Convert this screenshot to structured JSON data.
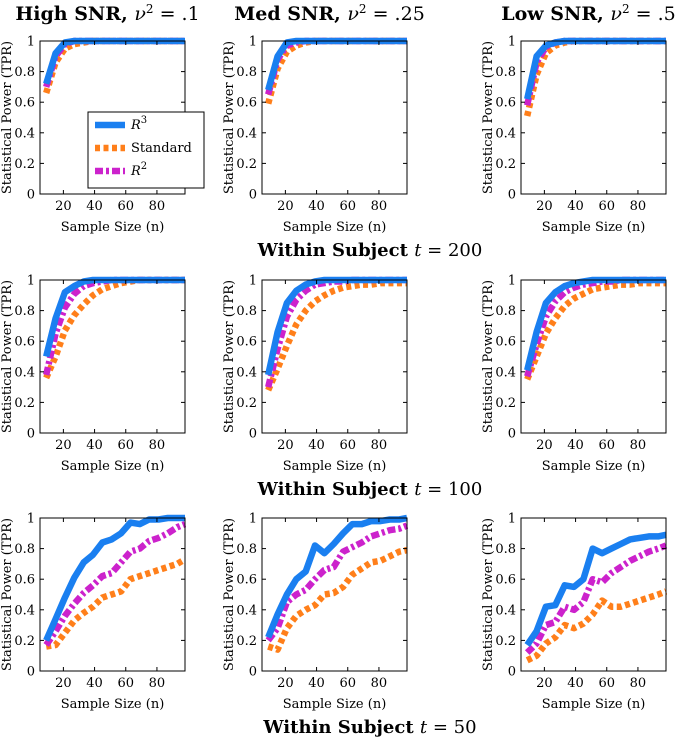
{
  "figure": {
    "col_titles": [
      {
        "prefix": "High SNR, ",
        "var": "ν",
        "sup": "2",
        "suffix": " = .1"
      },
      {
        "prefix": "Med SNR, ",
        "var": "ν",
        "sup": "2",
        "suffix": " = .25"
      },
      {
        "prefix": "Low SNR, ",
        "var": "ν",
        "sup": "2",
        "suffix": " = .5"
      }
    ],
    "row_titles": [
      {
        "text": "Within Subject ",
        "var": "t",
        "suffix": " = 200"
      },
      {
        "text": "Within Subject ",
        "var": "t",
        "suffix": " = 100"
      },
      {
        "text": "Within Subject ",
        "var": "t",
        "suffix": " = 50"
      }
    ],
    "xlabel": "Sample Size (n)",
    "ylabel": "Statistical Power (TPR)",
    "legend": [
      {
        "label": "R",
        "sup": "3",
        "color": "#1a7ff0",
        "style": "solid"
      },
      {
        "label": "Standard",
        "sup": "",
        "color": "#ff7f1a",
        "style": "dashed"
      },
      {
        "label": "R",
        "sup": "2",
        "color": "#cc22cc",
        "style": "dashdot"
      }
    ]
  },
  "chart_data": [
    {
      "type": "line",
      "row": 0,
      "col": 0,
      "title": "High SNR, ν² = .1",
      "xlabel": "Sample Size (n)",
      "ylabel": "Statistical Power (TPR)",
      "x": [
        9,
        15,
        21,
        27,
        33,
        39,
        45,
        51,
        57,
        63,
        69,
        75,
        81,
        87,
        93,
        98
      ],
      "xlim": [
        5,
        98
      ],
      "ylim": [
        0,
        1
      ],
      "xticks": [
        20,
        40,
        60,
        80
      ],
      "yticks": [
        0,
        0.2,
        0.4,
        0.6,
        0.8,
        1
      ],
      "series": [
        {
          "name": "R³",
          "values": [
            0.72,
            0.92,
            0.99,
            1,
            1,
            1,
            1,
            1,
            1,
            1,
            1,
            1,
            1,
            1,
            1,
            1
          ]
        },
        {
          "name": "Standard",
          "values": [
            0.66,
            0.86,
            0.95,
            0.98,
            0.99,
            1,
            1,
            1,
            1,
            1,
            1,
            1,
            1,
            1,
            1,
            1
          ]
        },
        {
          "name": "R²",
          "values": [
            0.7,
            0.9,
            0.98,
            1,
            1,
            1,
            1,
            1,
            1,
            1,
            1,
            1,
            1,
            1,
            1,
            1
          ]
        }
      ]
    },
    {
      "type": "line",
      "row": 0,
      "col": 1,
      "title": "Med SNR, ν² = .25",
      "xlabel": "Sample Size (n)",
      "ylabel": "Statistical Power (TPR)",
      "x": [
        9,
        15,
        21,
        27,
        33,
        39,
        45,
        51,
        57,
        63,
        69,
        75,
        81,
        87,
        93,
        98
      ],
      "xlim": [
        5,
        98
      ],
      "ylim": [
        0,
        1
      ],
      "xticks": [
        20,
        40,
        60,
        80
      ],
      "yticks": [
        0,
        0.2,
        0.4,
        0.6,
        0.8,
        1
      ],
      "series": [
        {
          "name": "R³",
          "values": [
            0.68,
            0.9,
            0.99,
            1,
            1,
            1,
            1,
            1,
            1,
            1,
            1,
            1,
            1,
            1,
            1,
            1
          ]
        },
        {
          "name": "Standard",
          "values": [
            0.59,
            0.82,
            0.93,
            0.97,
            0.99,
            1,
            1,
            1,
            1,
            1,
            1,
            1,
            1,
            1,
            1,
            1
          ]
        },
        {
          "name": "R²",
          "values": [
            0.65,
            0.88,
            0.97,
            0.99,
            1,
            1,
            1,
            1,
            1,
            1,
            1,
            1,
            1,
            1,
            1,
            1
          ]
        }
      ]
    },
    {
      "type": "line",
      "row": 0,
      "col": 2,
      "title": "Low SNR, ν² = .5",
      "xlabel": "Sample Size (n)",
      "ylabel": "Statistical Power (TPR)",
      "x": [
        9,
        15,
        21,
        27,
        33,
        39,
        45,
        51,
        57,
        63,
        69,
        75,
        81,
        87,
        93,
        98
      ],
      "xlim": [
        5,
        98
      ],
      "ylim": [
        0,
        1
      ],
      "xticks": [
        20,
        40,
        60,
        80
      ],
      "yticks": [
        0,
        0.2,
        0.4,
        0.6,
        0.8,
        1
      ],
      "series": [
        {
          "name": "R³",
          "values": [
            0.62,
            0.9,
            0.97,
            0.99,
            1,
            1,
            1,
            1,
            1,
            1,
            1,
            1,
            1,
            1,
            1,
            1
          ]
        },
        {
          "name": "Standard",
          "values": [
            0.51,
            0.78,
            0.92,
            0.97,
            0.99,
            1,
            1,
            1,
            1,
            1,
            1,
            1,
            1,
            1,
            1,
            1
          ]
        },
        {
          "name": "R²",
          "values": [
            0.58,
            0.86,
            0.96,
            0.99,
            1,
            1,
            1,
            1,
            1,
            1,
            1,
            1,
            1,
            1,
            1,
            1
          ]
        }
      ]
    },
    {
      "type": "line",
      "row": 1,
      "col": 0,
      "title": "",
      "xlabel": "Sample Size (n)",
      "ylabel": "Statistical Power (TPR)",
      "x": [
        9,
        15,
        21,
        27,
        33,
        39,
        45,
        51,
        57,
        63,
        69,
        75,
        81,
        87,
        93,
        98
      ],
      "xlim": [
        5,
        98
      ],
      "ylim": [
        0,
        1
      ],
      "xticks": [
        20,
        40,
        60,
        80
      ],
      "yticks": [
        0,
        0.2,
        0.4,
        0.6,
        0.8,
        1
      ],
      "series": [
        {
          "name": "R³",
          "values": [
            0.5,
            0.75,
            0.92,
            0.96,
            0.99,
            1,
            1,
            1,
            1,
            1,
            1,
            1,
            1,
            1,
            1,
            1
          ]
        },
        {
          "name": "Standard",
          "values": [
            0.36,
            0.5,
            0.67,
            0.77,
            0.84,
            0.9,
            0.94,
            0.96,
            0.98,
            0.99,
            1,
            1,
            1,
            1,
            1,
            1
          ]
        },
        {
          "name": "R²",
          "values": [
            0.38,
            0.65,
            0.82,
            0.91,
            0.96,
            0.98,
            0.99,
            1,
            1,
            1,
            1,
            1,
            1,
            1,
            1,
            1
          ]
        }
      ]
    },
    {
      "type": "line",
      "row": 1,
      "col": 1,
      "title": "",
      "xlabel": "Sample Size (n)",
      "ylabel": "Statistical Power (TPR)",
      "x": [
        9,
        15,
        21,
        27,
        33,
        39,
        45,
        51,
        57,
        63,
        69,
        75,
        81,
        87,
        93,
        98
      ],
      "xlim": [
        5,
        98
      ],
      "ylim": [
        0,
        1
      ],
      "xticks": [
        20,
        40,
        60,
        80
      ],
      "yticks": [
        0,
        0.2,
        0.4,
        0.6,
        0.8,
        1
      ],
      "series": [
        {
          "name": "R³",
          "values": [
            0.38,
            0.66,
            0.85,
            0.93,
            0.97,
            0.99,
            1,
            1,
            1,
            1,
            1,
            1,
            1,
            1,
            1,
            1
          ]
        },
        {
          "name": "Standard",
          "values": [
            0.28,
            0.42,
            0.57,
            0.71,
            0.8,
            0.86,
            0.9,
            0.93,
            0.95,
            0.96,
            0.97,
            0.97,
            0.98,
            0.98,
            0.98,
            0.98
          ]
        },
        {
          "name": "R²",
          "values": [
            0.3,
            0.55,
            0.76,
            0.87,
            0.93,
            0.97,
            0.98,
            0.99,
            0.99,
            1,
            1,
            1,
            1,
            1,
            1,
            1
          ]
        }
      ]
    },
    {
      "type": "line",
      "row": 1,
      "col": 2,
      "title": "",
      "xlabel": "Sample Size (n)",
      "ylabel": "Statistical Power (TPR)",
      "x": [
        9,
        15,
        21,
        27,
        33,
        39,
        45,
        51,
        57,
        63,
        69,
        75,
        81,
        87,
        93,
        98
      ],
      "xlim": [
        5,
        98
      ],
      "ylim": [
        0,
        1
      ],
      "xticks": [
        20,
        40,
        60,
        80
      ],
      "yticks": [
        0,
        0.2,
        0.4,
        0.6,
        0.8,
        1
      ],
      "series": [
        {
          "name": "R³",
          "values": [
            0.41,
            0.66,
            0.85,
            0.92,
            0.96,
            0.98,
            0.99,
            1,
            1,
            1,
            1,
            1,
            1,
            1,
            1,
            1
          ]
        },
        {
          "name": "Standard",
          "values": [
            0.35,
            0.5,
            0.65,
            0.75,
            0.83,
            0.88,
            0.91,
            0.94,
            0.95,
            0.96,
            0.97,
            0.97,
            0.98,
            0.98,
            0.98,
            0.98
          ]
        },
        {
          "name": "R²",
          "values": [
            0.37,
            0.58,
            0.76,
            0.86,
            0.92,
            0.95,
            0.97,
            0.98,
            0.99,
            0.99,
            1,
            1,
            1,
            1,
            1,
            1
          ]
        }
      ]
    },
    {
      "type": "line",
      "row": 2,
      "col": 0,
      "title": "",
      "xlabel": "Sample Size (n)",
      "ylabel": "Statistical Power (TPR)",
      "x": [
        9,
        15,
        21,
        27,
        33,
        39,
        45,
        51,
        57,
        63,
        69,
        75,
        81,
        87,
        93,
        98
      ],
      "xlim": [
        5,
        98
      ],
      "ylim": [
        0,
        1
      ],
      "xticks": [
        20,
        40,
        60,
        80
      ],
      "yticks": [
        0,
        0.2,
        0.4,
        0.6,
        0.8,
        1
      ],
      "series": [
        {
          "name": "R³",
          "values": [
            0.2,
            0.34,
            0.48,
            0.61,
            0.71,
            0.76,
            0.84,
            0.86,
            0.9,
            0.97,
            0.96,
            0.99,
            0.99,
            1,
            1,
            1
          ]
        },
        {
          "name": "Standard",
          "values": [
            0.16,
            0.17,
            0.25,
            0.33,
            0.38,
            0.42,
            0.48,
            0.5,
            0.52,
            0.6,
            0.62,
            0.64,
            0.66,
            0.68,
            0.7,
            0.73
          ]
        },
        {
          "name": "R²",
          "values": [
            0.17,
            0.26,
            0.36,
            0.44,
            0.51,
            0.56,
            0.62,
            0.64,
            0.71,
            0.78,
            0.8,
            0.85,
            0.87,
            0.9,
            0.94,
            0.96
          ]
        }
      ]
    },
    {
      "type": "line",
      "row": 2,
      "col": 1,
      "title": "",
      "xlabel": "Sample Size (n)",
      "ylabel": "Statistical Power (TPR)",
      "x": [
        9,
        15,
        21,
        27,
        33,
        39,
        45,
        51,
        57,
        63,
        69,
        75,
        81,
        87,
        93,
        98
      ],
      "xlim": [
        5,
        98
      ],
      "ylim": [
        0,
        1
      ],
      "xticks": [
        20,
        40,
        60,
        80
      ],
      "yticks": [
        0,
        0.2,
        0.4,
        0.6,
        0.8,
        1
      ],
      "series": [
        {
          "name": "R³",
          "values": [
            0.22,
            0.37,
            0.5,
            0.6,
            0.65,
            0.82,
            0.77,
            0.83,
            0.9,
            0.96,
            0.96,
            0.98,
            0.98,
            0.99,
            0.99,
            1
          ]
        },
        {
          "name": "Standard",
          "values": [
            0.16,
            0.14,
            0.28,
            0.36,
            0.4,
            0.43,
            0.5,
            0.51,
            0.55,
            0.63,
            0.67,
            0.71,
            0.72,
            0.75,
            0.78,
            0.79
          ]
        },
        {
          "name": "R²",
          "values": [
            0.2,
            0.28,
            0.45,
            0.5,
            0.53,
            0.6,
            0.66,
            0.68,
            0.78,
            0.81,
            0.84,
            0.88,
            0.9,
            0.92,
            0.93,
            0.95
          ]
        }
      ]
    },
    {
      "type": "line",
      "row": 2,
      "col": 2,
      "title": "",
      "xlabel": "Sample Size (n)",
      "ylabel": "Statistical Power (TPR)",
      "x": [
        9,
        15,
        21,
        27,
        33,
        39,
        45,
        51,
        57,
        63,
        69,
        75,
        81,
        87,
        93,
        98
      ],
      "xlim": [
        5,
        98
      ],
      "ylim": [
        0,
        1
      ],
      "xticks": [
        20,
        40,
        60,
        80
      ],
      "yticks": [
        0,
        0.2,
        0.4,
        0.6,
        0.8,
        1
      ],
      "series": [
        {
          "name": "R³",
          "values": [
            0.17,
            0.26,
            0.42,
            0.43,
            0.56,
            0.55,
            0.6,
            0.8,
            0.77,
            0.8,
            0.83,
            0.86,
            0.87,
            0.88,
            0.88,
            0.89
          ]
        },
        {
          "name": "Standard",
          "values": [
            0.07,
            0.1,
            0.18,
            0.22,
            0.3,
            0.28,
            0.31,
            0.37,
            0.46,
            0.42,
            0.42,
            0.44,
            0.46,
            0.48,
            0.5,
            0.52
          ]
        },
        {
          "name": "R²",
          "values": [
            0.12,
            0.18,
            0.3,
            0.32,
            0.42,
            0.4,
            0.45,
            0.6,
            0.58,
            0.64,
            0.68,
            0.72,
            0.75,
            0.78,
            0.8,
            0.82
          ]
        }
      ]
    }
  ]
}
